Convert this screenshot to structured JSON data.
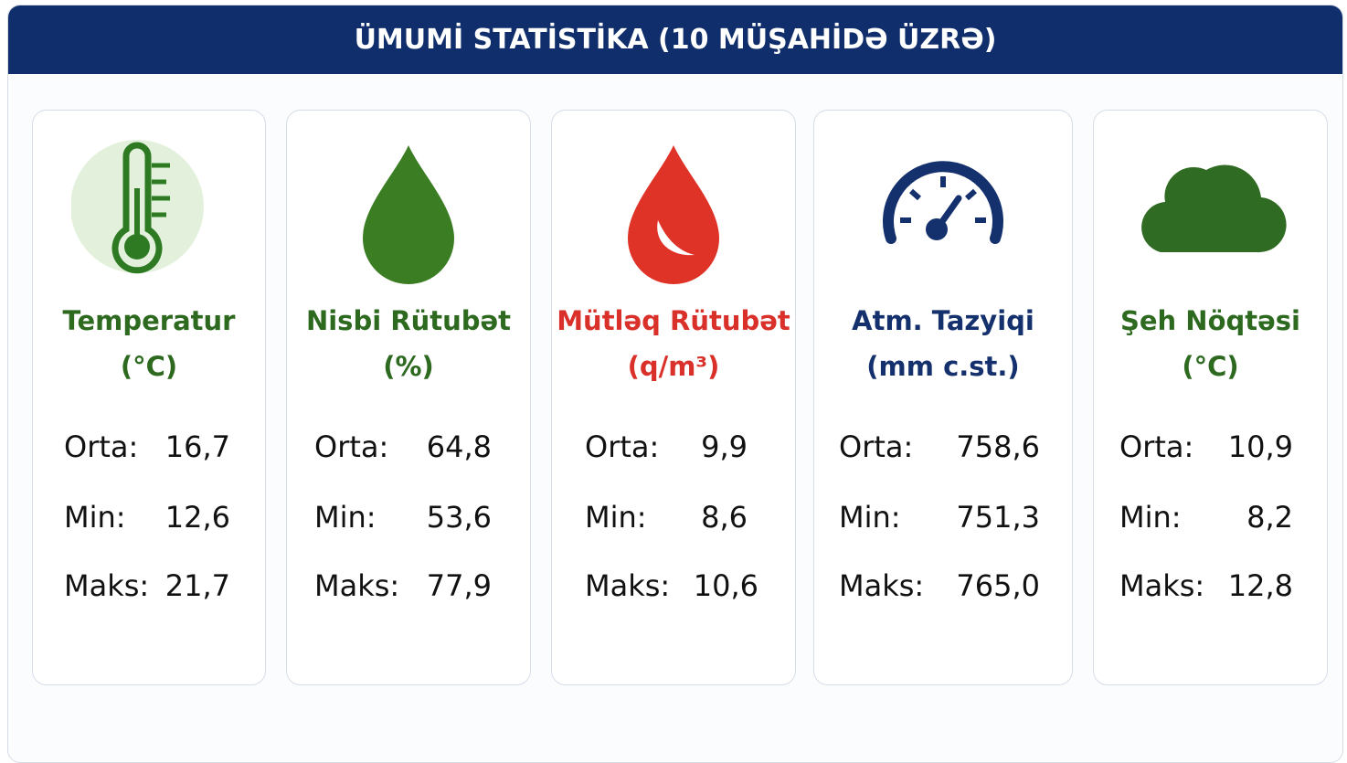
{
  "header": {
    "title": "ÜMUMİ STATİSTİKA (10 MÜŞAHİDƏ ÜZRƏ)"
  },
  "cards": [
    {
      "title": "Temperatur",
      "unit": "(°C)",
      "rows": [
        {
          "label": "Orta:",
          "value": "16,7"
        },
        {
          "label": "Min:",
          "value": "12,6"
        },
        {
          "label": "Maks:",
          "value": "21,7"
        }
      ]
    },
    {
      "title": "Nisbi Rütubət",
      "unit": "(%)",
      "rows": [
        {
          "label": "Orta:",
          "value": "64,8"
        },
        {
          "label": "Min:",
          "value": "53,6"
        },
        {
          "label": "Maks:",
          "value": "77,9"
        }
      ]
    },
    {
      "title": "Mütləq Rütubət",
      "unit": "(q/m³)",
      "rows": [
        {
          "label": "Orta:",
          "value": "9,9"
        },
        {
          "label": "Min:",
          "value": "8,6"
        },
        {
          "label": "Maks:",
          "value": "10,6"
        }
      ]
    },
    {
      "title": "Atm. Tazyiqi",
      "unit": "(mm c.st.)",
      "rows": [
        {
          "label": "Orta:",
          "value": "758,6"
        },
        {
          "label": "Min:",
          "value": "751,3"
        },
        {
          "label": "Maks:",
          "value": "765,0"
        }
      ]
    },
    {
      "title": "Şeh Nöqtəsi",
      "unit": "(°C)",
      "rows": [
        {
          "label": "Orta:",
          "value": "10,9"
        },
        {
          "label": "Min:",
          "value": "8,2"
        },
        {
          "label": "Maks:",
          "value": "12,8"
        }
      ]
    }
  ]
}
